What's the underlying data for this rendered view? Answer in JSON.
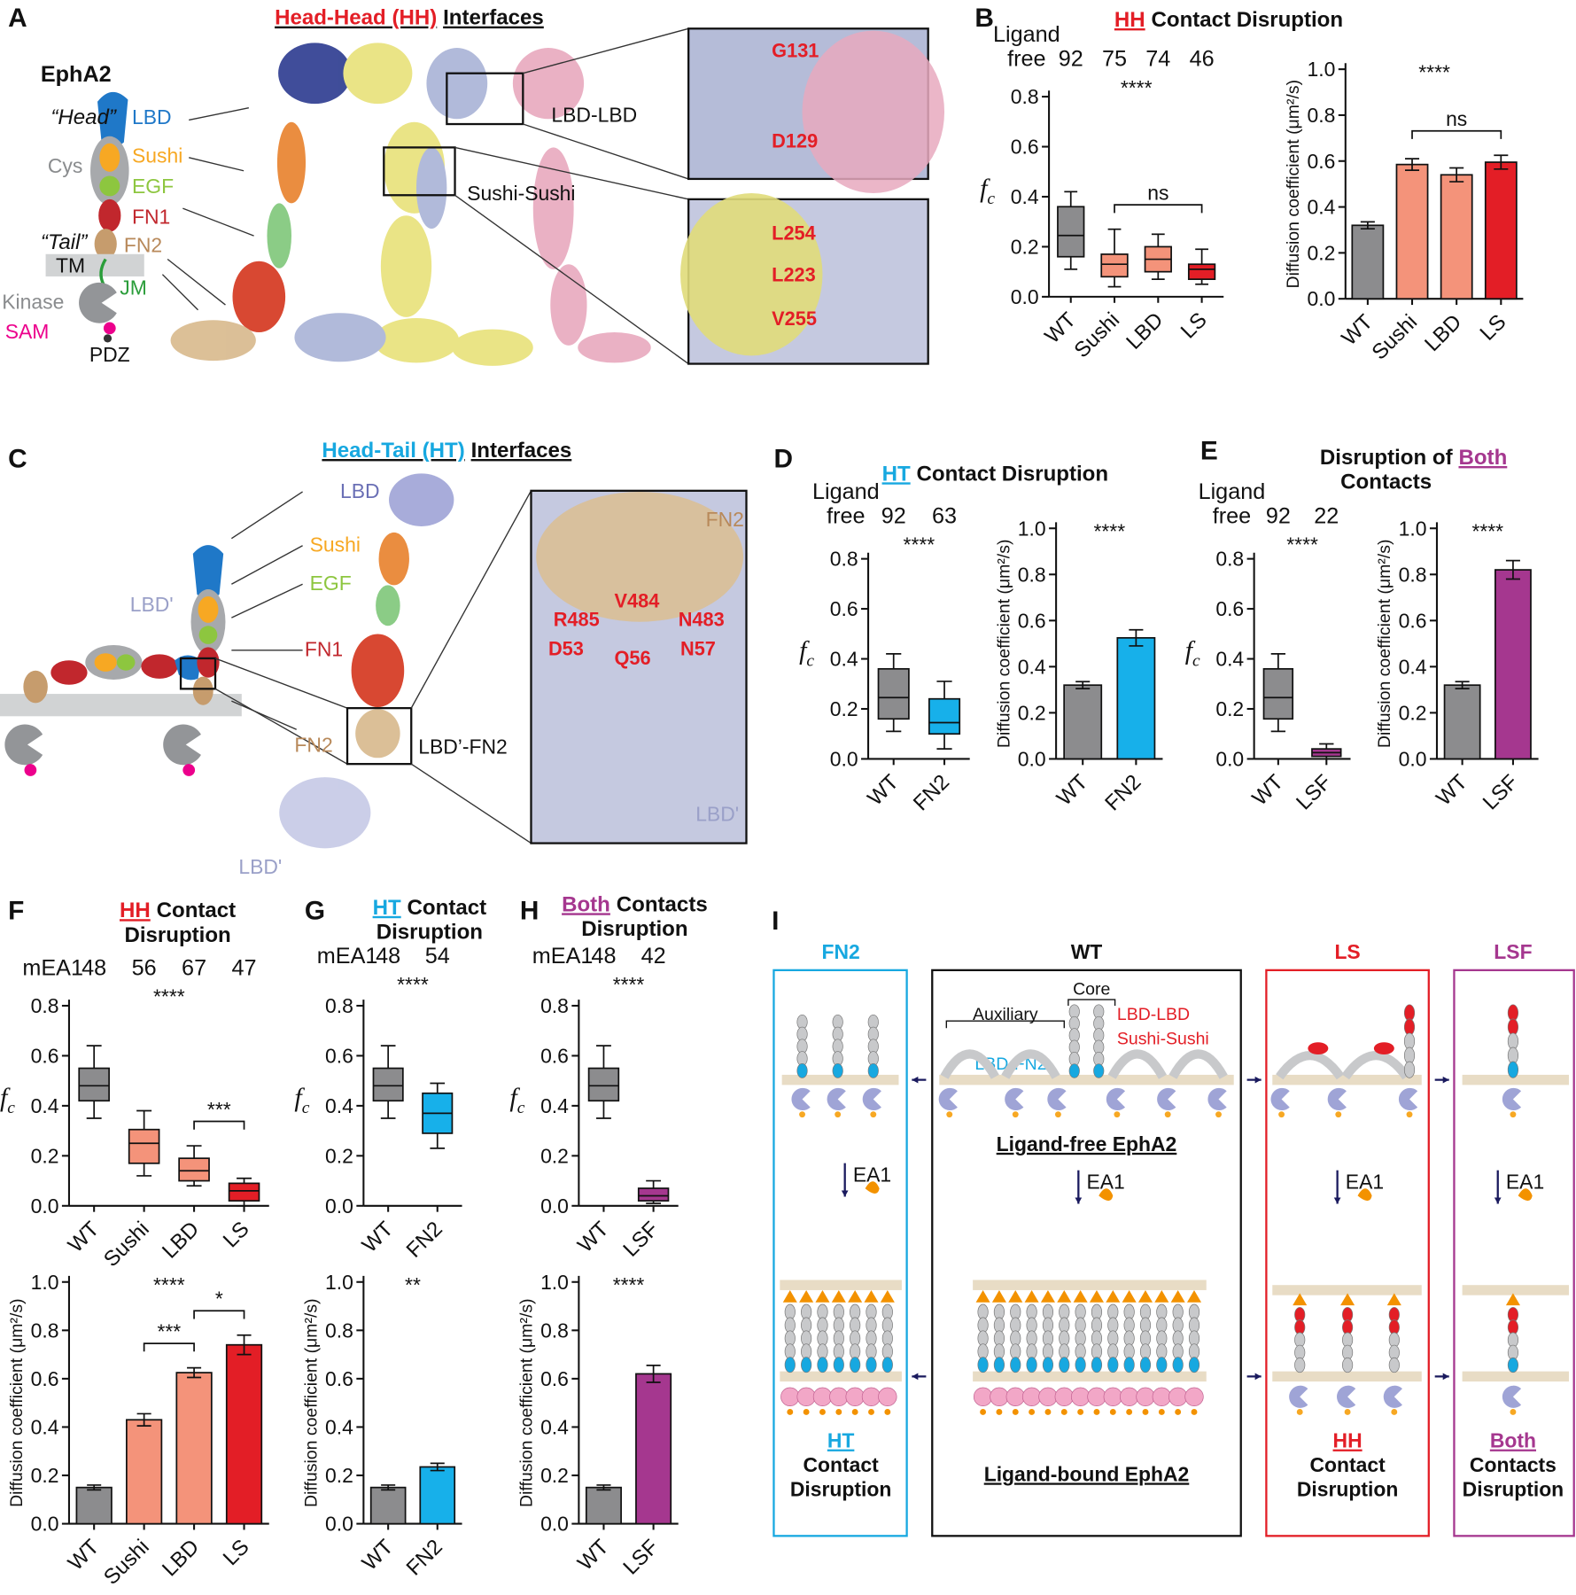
{
  "figure": {
    "A": {
      "letter": "A",
      "title": [
        "Head-Head (HH)",
        "Interfaces"
      ],
      "protein": "EphA2",
      "head": "“Head”",
      "tail": "“Tail”",
      "domains": [
        "LBD",
        "Sushi",
        "Cys",
        "EGF",
        "FN1",
        "FN2",
        "TM",
        "JM",
        "Kinase",
        "SAM",
        "PDZ"
      ],
      "interfaces": [
        "LBD-LBD",
        "Sushi-Sushi"
      ],
      "residues": [
        "G131",
        "D129",
        "L254",
        "L223",
        "V255"
      ]
    },
    "B": {
      "letter": "B",
      "title": [
        "HH",
        "Contact Disruption"
      ]
    },
    "C": {
      "letter": "C",
      "title": [
        "Head-Tail (HT)",
        "Interfaces"
      ],
      "labels": [
        "LBD",
        "Sushi",
        "EGF",
        "FN1",
        "FN2",
        "LBD'",
        "LBD'"
      ],
      "interface": "LBD’-FN2",
      "zoom_labels": [
        "FN2",
        "V484",
        "R485",
        "N483",
        "D53",
        "Q56",
        "N57",
        "LBD'"
      ]
    },
    "D": {
      "letter": "D",
      "title": [
        "HT",
        "Contact Disruption"
      ]
    },
    "E": {
      "letter": "E",
      "title": [
        "Disruption of",
        "Both",
        "Contacts"
      ]
    },
    "F": {
      "letter": "F",
      "title": [
        "HH",
        "Contact",
        "Disruption"
      ]
    },
    "G": {
      "letter": "G",
      "title": [
        "HT",
        "Contact",
        "Disruption"
      ]
    },
    "H": {
      "letter": "H",
      "title": [
        "Both",
        "Contacts",
        "Disruption"
      ]
    },
    "I": {
      "letter": "I",
      "wt": "WT",
      "core": "Core",
      "auxiliary": "Auxiliary",
      "wt_interfaces": [
        "LBD-LBD",
        "Sushi-Sushi",
        "LBD-FN2"
      ],
      "free": "Ligand-free EphA2",
      "bound": "Ligand-bound EphA2",
      "ligand": [
        "EA1",
        "EA1",
        "EA1",
        "EA1"
      ],
      "variants": [
        {
          "name": "FN2",
          "labels": [
            "HT",
            "Contact",
            "Disruption"
          ]
        },
        {
          "name": "LS",
          "labels": [
            "HH",
            "Contact",
            "Disruption"
          ]
        },
        {
          "name": "LSF",
          "labels": [
            "Both",
            "Contacts",
            "Disruption"
          ]
        }
      ]
    }
  },
  "chart_data": [
    {
      "type": "box",
      "categories": [
        "WT",
        "Sushi",
        "LBD",
        "LS"
      ],
      "n_label": [
        "Ligand",
        "free"
      ],
      "n_values": [
        92,
        75,
        74,
        46
      ],
      "boxes": [
        {
          "whislo": 0.11,
          "q1": 0.16,
          "med": 0.245,
          "q3": 0.36,
          "whishi": 0.42
        },
        {
          "whislo": 0.04,
          "q1": 0.08,
          "med": 0.13,
          "q3": 0.17,
          "whishi": 0.27
        },
        {
          "whislo": 0.07,
          "q1": 0.1,
          "med": 0.15,
          "q3": 0.2,
          "whishi": 0.25
        },
        {
          "whislo": 0.05,
          "q1": 0.07,
          "med": 0.11,
          "q3": 0.13,
          "whishi": 0.19
        }
      ],
      "colors": [
        "#8c8c8e",
        "#f4937a",
        "#f4937a",
        "#e31e26"
      ],
      "ylim": [
        0,
        0.8
      ],
      "yticks": [
        {
          "value": 0,
          "label": "0.0"
        },
        0.2,
        0.4,
        0.6,
        0.8
      ],
      "ylabel": {
        "main": "f",
        "sub": "c"
      },
      "annotations": [
        {
          "text": "****"
        },
        {
          "text": "ns",
          "between": [
            "Sushi",
            "LS"
          ]
        }
      ]
    },
    {
      "type": "bar",
      "categories": [
        "WT",
        "Sushi",
        "LBD",
        "LS"
      ],
      "values": [
        0.32,
        0.585,
        0.54,
        0.595
      ],
      "errors": [
        0.015,
        0.025,
        0.03,
        0.03
      ],
      "colors": [
        "#8c8c8e",
        "#f4937a",
        "#f4937a",
        "#e31e26"
      ],
      "ylim": [
        0,
        1
      ],
      "yticks": [
        {
          "value": 0,
          "label": "0.0"
        },
        0.2,
        0.4,
        0.6,
        0.8,
        {
          "value": 1,
          "label": "1.0"
        }
      ],
      "ylabel": "Diffusion coefficient (μm²/s)",
      "annotations": [
        {
          "text": "****"
        },
        {
          "text": "ns",
          "between": [
            "Sushi",
            "LS"
          ]
        }
      ]
    },
    {
      "type": "box",
      "categories": [
        "WT",
        "FN2"
      ],
      "n_label": [
        "Ligand",
        "free"
      ],
      "n_values": [
        92,
        63
      ],
      "boxes": [
        {
          "whislo": 0.11,
          "q1": 0.16,
          "med": 0.245,
          "q3": 0.36,
          "whishi": 0.42
        },
        {
          "whislo": 0.04,
          "q1": 0.1,
          "med": 0.145,
          "q3": 0.24,
          "whishi": 0.31
        }
      ],
      "colors": [
        "#8c8c8e",
        "#17b0ea"
      ],
      "ylim": [
        0,
        0.8
      ],
      "yticks": [
        {
          "value": 0,
          "label": "0.0"
        },
        0.2,
        0.4,
        0.6,
        0.8
      ],
      "ylabel": {
        "main": "f",
        "sub": "c"
      },
      "annotations": [
        {
          "text": "****"
        }
      ]
    },
    {
      "type": "bar",
      "categories": [
        "WT",
        "FN2"
      ],
      "values": [
        0.32,
        0.525
      ],
      "errors": [
        0.015,
        0.035
      ],
      "colors": [
        "#8c8c8e",
        "#17b0ea"
      ],
      "ylim": [
        0,
        1
      ],
      "yticks": [
        {
          "value": 0,
          "label": "0.0"
        },
        0.2,
        0.4,
        0.6,
        0.8,
        {
          "value": 1,
          "label": "1.0"
        }
      ],
      "ylabel": "Diffusion coefficient (μm²/s)",
      "annotations": [
        {
          "text": "****"
        }
      ]
    },
    {
      "type": "box",
      "categories": [
        "WT",
        "LSF"
      ],
      "n_label": [
        "Ligand",
        "free"
      ],
      "n_values": [
        92,
        22
      ],
      "boxes": [
        {
          "whislo": 0.11,
          "q1": 0.16,
          "med": 0.245,
          "q3": 0.36,
          "whishi": 0.42
        },
        {
          "whislo": 0,
          "q1": 0.01,
          "med": 0.025,
          "q3": 0.04,
          "whishi": 0.06
        }
      ],
      "colors": [
        "#8c8c8e",
        "#a5378f"
      ],
      "ylim": [
        0,
        0.8
      ],
      "yticks": [
        {
          "value": 0,
          "label": "0.0"
        },
        0.2,
        0.4,
        0.6,
        0.8
      ],
      "ylabel": {
        "main": "f",
        "sub": "c"
      },
      "annotations": [
        {
          "text": "****"
        }
      ]
    },
    {
      "type": "bar",
      "categories": [
        "WT",
        "LSF"
      ],
      "values": [
        0.32,
        0.82
      ],
      "errors": [
        0.015,
        0.04
      ],
      "colors": [
        "#8c8c8e",
        "#a5378f"
      ],
      "ylim": [
        0,
        1
      ],
      "yticks": [
        {
          "value": 0,
          "label": "0.0"
        },
        0.2,
        0.4,
        0.6,
        0.8,
        {
          "value": 1,
          "label": "1.0"
        }
      ],
      "ylabel": "Diffusion coefficient (μm²/s)",
      "annotations": [
        {
          "text": "****"
        }
      ]
    },
    {
      "type": "box",
      "categories": [
        "WT",
        "Sushi",
        "LBD",
        "LS"
      ],
      "n_label": "mEA1",
      "n_values": [
        48,
        56,
        67,
        47
      ],
      "boxes": [
        {
          "whislo": 0.35,
          "q1": 0.42,
          "med": 0.48,
          "q3": 0.55,
          "whishi": 0.64
        },
        {
          "whislo": 0.12,
          "q1": 0.17,
          "med": 0.25,
          "q3": 0.305,
          "whishi": 0.38
        },
        {
          "whislo": 0.08,
          "q1": 0.1,
          "med": 0.14,
          "q3": 0.19,
          "whishi": 0.24
        },
        {
          "whislo": 0,
          "q1": 0.02,
          "med": 0.06,
          "q3": 0.09,
          "whishi": 0.11
        }
      ],
      "colors": [
        "#8c8c8e",
        "#f4937a",
        "#f4937a",
        "#e31e26"
      ],
      "ylim": [
        0,
        0.8
      ],
      "yticks": [
        {
          "value": 0,
          "label": "0.0"
        },
        0.2,
        0.4,
        0.6,
        0.8
      ],
      "ylabel": {
        "main": "f",
        "sub": "c"
      },
      "annotations": [
        {
          "text": "****"
        },
        {
          "text": "***",
          "between": [
            "LBD",
            "LS"
          ]
        }
      ]
    },
    {
      "type": "bar",
      "categories": [
        "WT",
        "Sushi",
        "LBD",
        "LS"
      ],
      "values": [
        0.15,
        0.43,
        0.625,
        0.74
      ],
      "errors": [
        0.01,
        0.025,
        0.02,
        0.04
      ],
      "colors": [
        "#8c8c8e",
        "#f4937a",
        "#f4937a",
        "#e31e26"
      ],
      "ylim": [
        0,
        1
      ],
      "yticks": [
        {
          "value": 0,
          "label": "0.0"
        },
        0.2,
        0.4,
        0.6,
        0.8,
        {
          "value": 1,
          "label": "1.0"
        }
      ],
      "ylabel": "Diffusion coefficient (μm²/s)",
      "annotations": [
        {
          "text": "****"
        },
        {
          "text": "***",
          "between": [
            "Sushi",
            "LBD"
          ]
        },
        {
          "text": "*",
          "between": [
            "LBD",
            "LS"
          ]
        }
      ]
    },
    {
      "type": "box",
      "categories": [
        "WT",
        "FN2"
      ],
      "n_label": "mEA1",
      "n_values": [
        48,
        54
      ],
      "boxes": [
        {
          "whislo": 0.35,
          "q1": 0.42,
          "med": 0.48,
          "q3": 0.55,
          "whishi": 0.64
        },
        {
          "whislo": 0.23,
          "q1": 0.29,
          "med": 0.37,
          "q3": 0.45,
          "whishi": 0.49
        }
      ],
      "colors": [
        "#8c8c8e",
        "#17b0ea"
      ],
      "ylim": [
        0,
        0.8
      ],
      "yticks": [
        {
          "value": 0,
          "label": "0.0"
        },
        0.2,
        0.4,
        0.6,
        0.8
      ],
      "ylabel": {
        "main": "f",
        "sub": "c"
      },
      "annotations": [
        {
          "text": "****"
        }
      ]
    },
    {
      "type": "bar",
      "categories": [
        "WT",
        "FN2"
      ],
      "values": [
        0.15,
        0.235
      ],
      "errors": [
        0.01,
        0.015
      ],
      "colors": [
        "#8c8c8e",
        "#17b0ea"
      ],
      "ylim": [
        0,
        1
      ],
      "yticks": [
        {
          "value": 0,
          "label": "0.0"
        },
        0.2,
        0.4,
        0.6,
        0.8,
        {
          "value": 1,
          "label": "1.0"
        }
      ],
      "ylabel": "Diffusion coefficient (μm²/s)",
      "annotations": [
        {
          "text": "**"
        }
      ]
    },
    {
      "type": "box",
      "categories": [
        "WT",
        "LSF"
      ],
      "n_label": "mEA1",
      "n_values": [
        48,
        42
      ],
      "boxes": [
        {
          "whislo": 0.35,
          "q1": 0.42,
          "med": 0.48,
          "q3": 0.55,
          "whishi": 0.64
        },
        {
          "whislo": 0.01,
          "q1": 0.02,
          "med": 0.04,
          "q3": 0.07,
          "whishi": 0.1
        }
      ],
      "colors": [
        "#8c8c8e",
        "#a5378f"
      ],
      "ylim": [
        0,
        0.8
      ],
      "yticks": [
        {
          "value": 0,
          "label": "0.0"
        },
        0.2,
        0.4,
        0.6,
        0.8
      ],
      "ylabel": {
        "main": "f",
        "sub": "c"
      },
      "annotations": [
        {
          "text": "****"
        }
      ]
    },
    {
      "type": "bar",
      "categories": [
        "WT",
        "LSF"
      ],
      "values": [
        0.15,
        0.62
      ],
      "errors": [
        0.01,
        0.035
      ],
      "colors": [
        "#8c8c8e",
        "#a5378f"
      ],
      "ylim": [
        0,
        1
      ],
      "yticks": [
        {
          "value": 0,
          "label": "0.0"
        },
        0.2,
        0.4,
        0.6,
        0.8,
        {
          "value": 1,
          "label": "1.0"
        }
      ],
      "ylabel": "Diffusion coefficient (μm²/s)",
      "annotations": [
        {
          "text": "****"
        }
      ]
    }
  ]
}
